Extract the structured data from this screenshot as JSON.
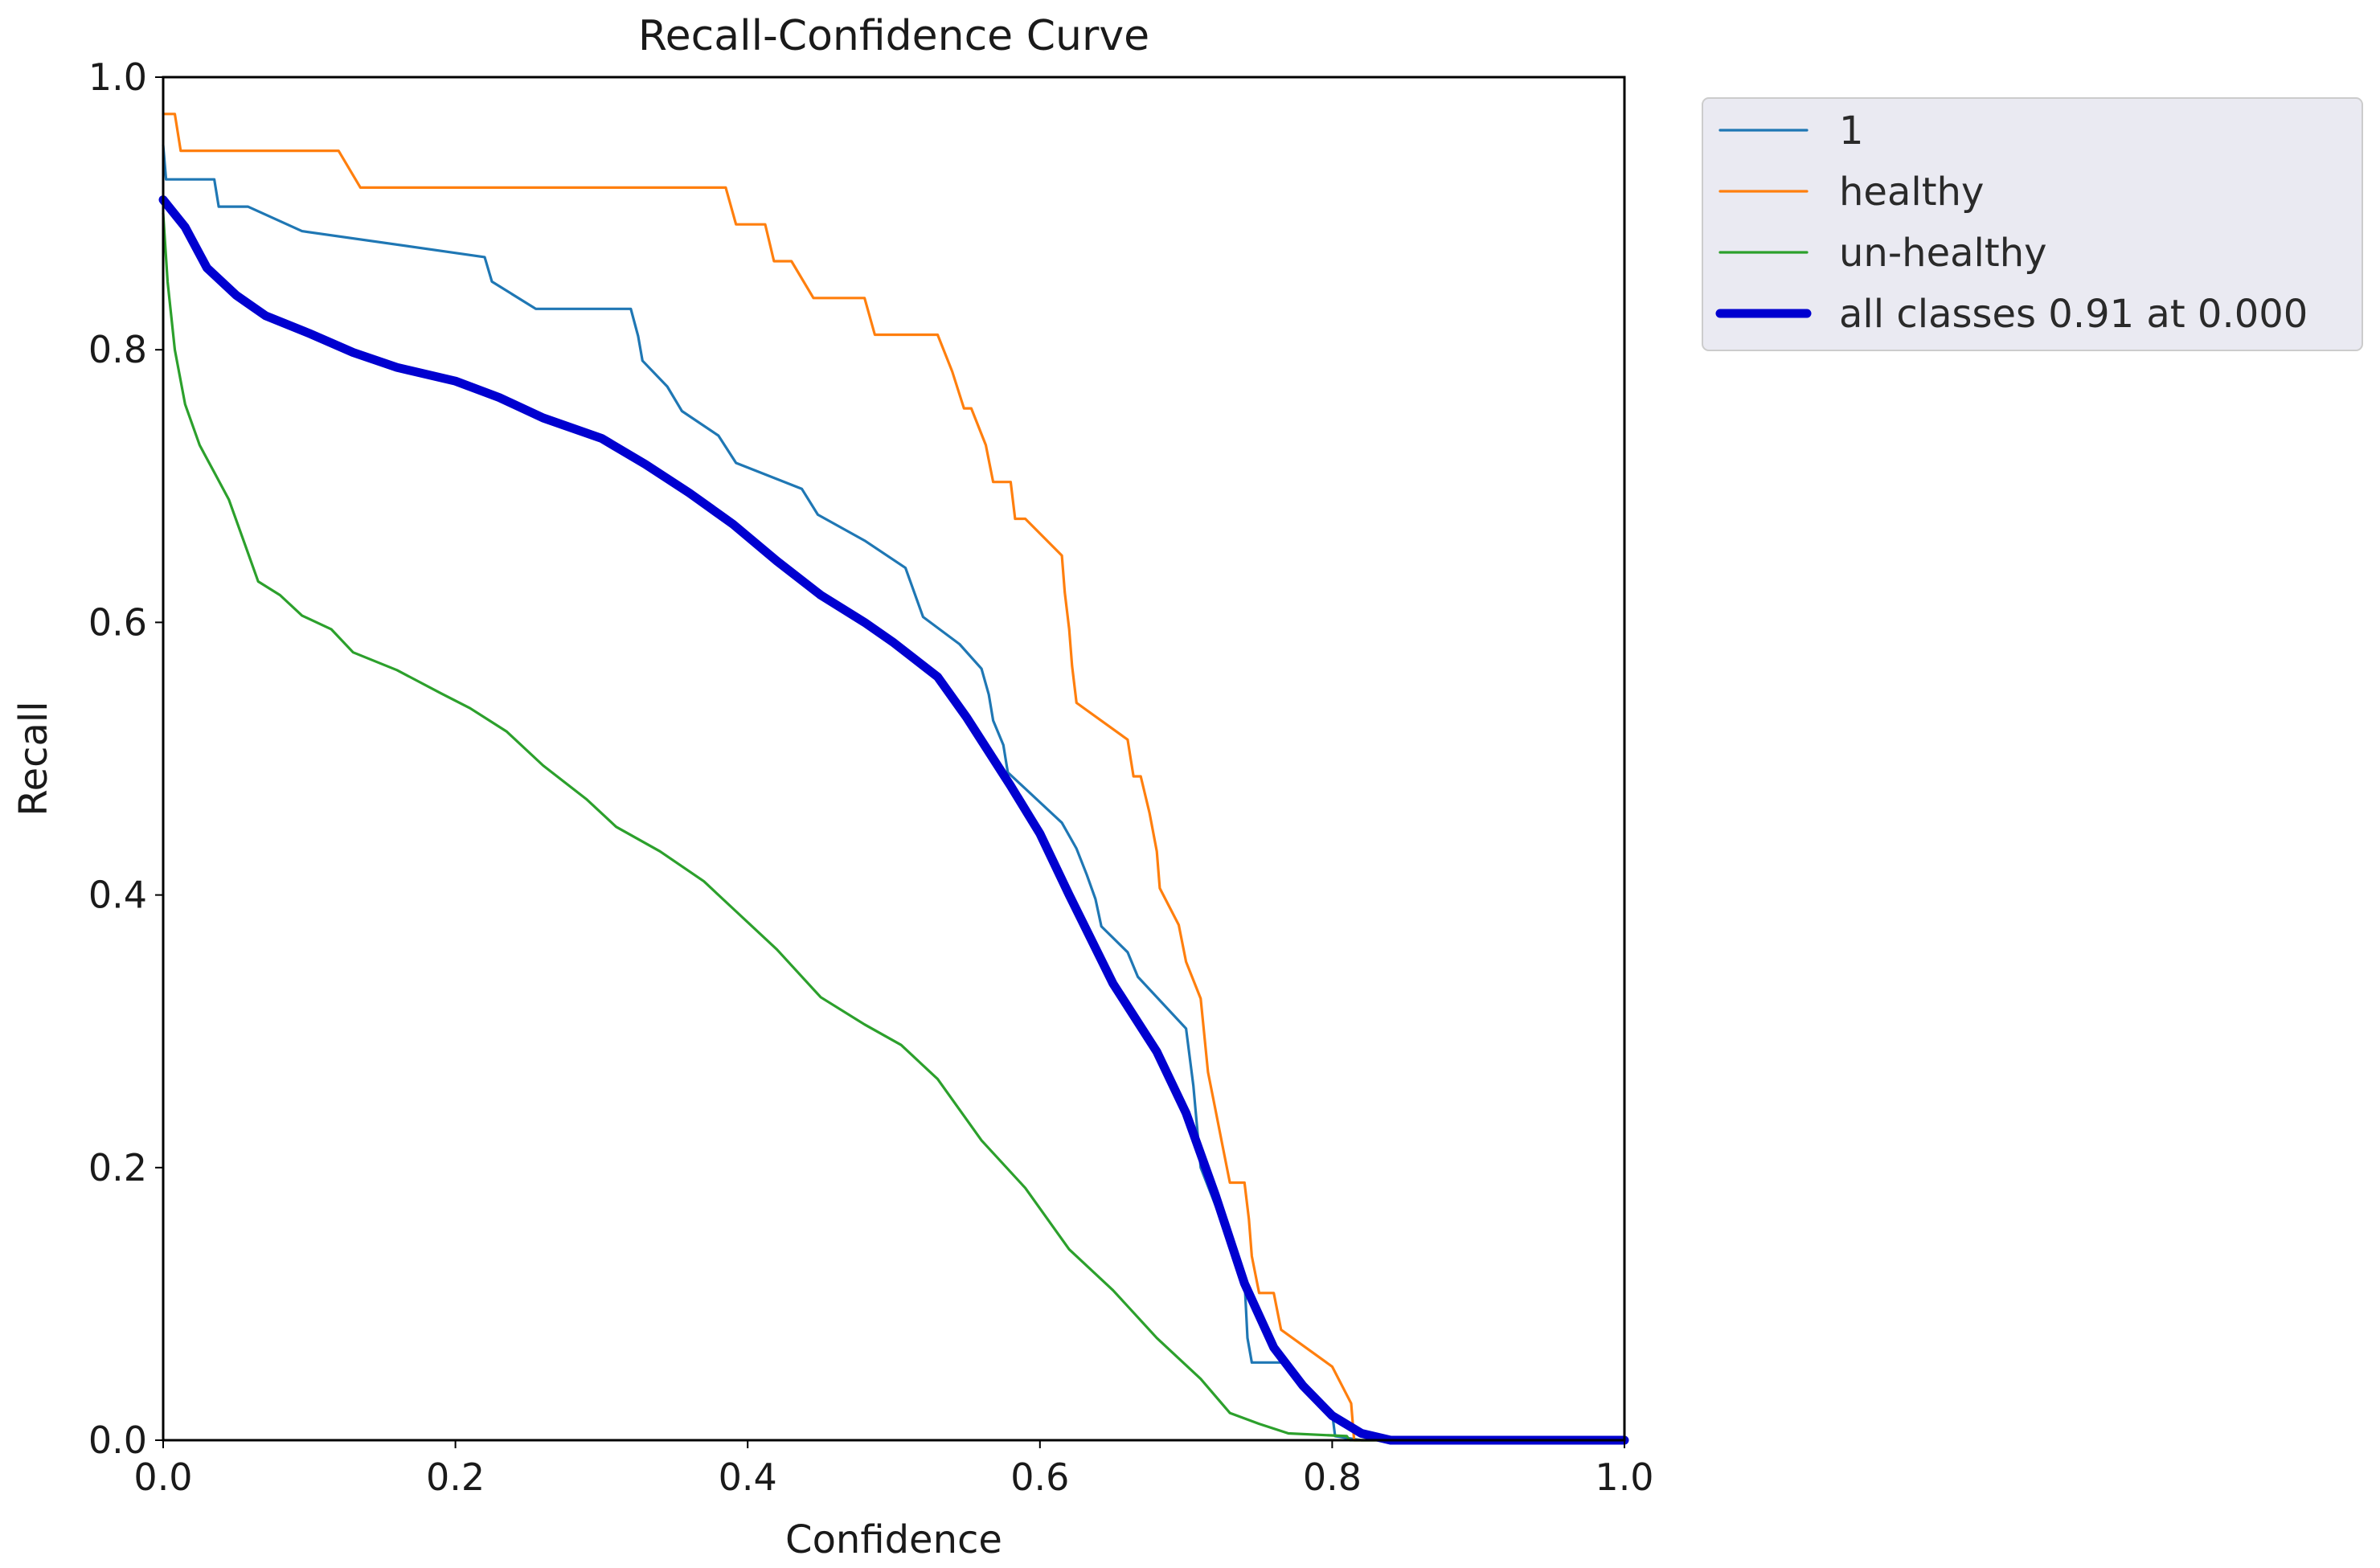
{
  "chart_data": {
    "type": "line",
    "title": "Recall-Confidence Curve",
    "xlabel": "Confidence",
    "ylabel": "Recall",
    "xlim": [
      0,
      1
    ],
    "ylim": [
      0,
      1
    ],
    "xticks": [
      0.0,
      0.2,
      0.4,
      0.6,
      0.8,
      1.0
    ],
    "yticks": [
      0.0,
      0.2,
      0.4,
      0.6,
      0.8,
      1.0
    ],
    "xtick_labels": [
      "0.0",
      "0.2",
      "0.4",
      "0.6",
      "0.8",
      "1.0"
    ],
    "ytick_labels": [
      "0.0",
      "0.2",
      "0.4",
      "0.6",
      "0.8",
      "1.0"
    ],
    "grid": false,
    "legend_position": "outside-top-right",
    "series": [
      {
        "name": "1",
        "color": "#1f77b4",
        "width": "thin",
        "points": [
          [
            0,
            0.95
          ],
          [
            0.002,
            0.925
          ],
          [
            0.035,
            0.925
          ],
          [
            0.038,
            0.905
          ],
          [
            0.058,
            0.905
          ],
          [
            0.095,
            0.887
          ],
          [
            0.22,
            0.868
          ],
          [
            0.225,
            0.85
          ],
          [
            0.255,
            0.83
          ],
          [
            0.32,
            0.83
          ],
          [
            0.325,
            0.81
          ],
          [
            0.328,
            0.792
          ],
          [
            0.345,
            0.773
          ],
          [
            0.355,
            0.755
          ],
          [
            0.38,
            0.737
          ],
          [
            0.392,
            0.717
          ],
          [
            0.437,
            0.698
          ],
          [
            0.448,
            0.679
          ],
          [
            0.48,
            0.66
          ],
          [
            0.508,
            0.64
          ],
          [
            0.52,
            0.604
          ],
          [
            0.545,
            0.584
          ],
          [
            0.56,
            0.566
          ],
          [
            0.565,
            0.547
          ],
          [
            0.568,
            0.528
          ],
          [
            0.575,
            0.51
          ],
          [
            0.578,
            0.49
          ],
          [
            0.615,
            0.453
          ],
          [
            0.625,
            0.434
          ],
          [
            0.632,
            0.415
          ],
          [
            0.638,
            0.397
          ],
          [
            0.642,
            0.377
          ],
          [
            0.66,
            0.358
          ],
          [
            0.667,
            0.34
          ],
          [
            0.7,
            0.302
          ],
          [
            0.705,
            0.26
          ],
          [
            0.71,
            0.2
          ],
          [
            0.74,
            0.118
          ],
          [
            0.742,
            0.075
          ],
          [
            0.745,
            0.057
          ],
          [
            0.768,
            0.057
          ],
          [
            0.8,
            0.02
          ],
          [
            0.802,
            0.003
          ],
          [
            0.82,
            0.0
          ],
          [
            1.0,
            0.0
          ]
        ]
      },
      {
        "name": "healthy",
        "color": "#ff7f0e",
        "width": "thin",
        "points": [
          [
            0,
            0.973
          ],
          [
            0.008,
            0.973
          ],
          [
            0.012,
            0.946
          ],
          [
            0.12,
            0.946
          ],
          [
            0.135,
            0.919
          ],
          [
            0.385,
            0.919
          ],
          [
            0.392,
            0.892
          ],
          [
            0.412,
            0.892
          ],
          [
            0.418,
            0.865
          ],
          [
            0.43,
            0.865
          ],
          [
            0.445,
            0.838
          ],
          [
            0.48,
            0.838
          ],
          [
            0.487,
            0.811
          ],
          [
            0.53,
            0.811
          ],
          [
            0.54,
            0.784
          ],
          [
            0.548,
            0.757
          ],
          [
            0.553,
            0.757
          ],
          [
            0.563,
            0.73
          ],
          [
            0.568,
            0.703
          ],
          [
            0.58,
            0.703
          ],
          [
            0.583,
            0.676
          ],
          [
            0.59,
            0.676
          ],
          [
            0.615,
            0.649
          ],
          [
            0.617,
            0.622
          ],
          [
            0.62,
            0.595
          ],
          [
            0.622,
            0.568
          ],
          [
            0.625,
            0.541
          ],
          [
            0.66,
            0.514
          ],
          [
            0.664,
            0.487
          ],
          [
            0.669,
            0.487
          ],
          [
            0.675,
            0.46
          ],
          [
            0.68,
            0.432
          ],
          [
            0.682,
            0.405
          ],
          [
            0.695,
            0.378
          ],
          [
            0.7,
            0.351
          ],
          [
            0.71,
            0.324
          ],
          [
            0.715,
            0.27
          ],
          [
            0.72,
            0.243
          ],
          [
            0.725,
            0.216
          ],
          [
            0.73,
            0.189
          ],
          [
            0.74,
            0.189
          ],
          [
            0.743,
            0.162
          ],
          [
            0.745,
            0.135
          ],
          [
            0.75,
            0.108
          ],
          [
            0.76,
            0.108
          ],
          [
            0.765,
            0.081
          ],
          [
            0.8,
            0.054
          ],
          [
            0.813,
            0.027
          ],
          [
            0.815,
            0.0
          ],
          [
            1.0,
            0.0
          ]
        ]
      },
      {
        "name": "un-healthy",
        "color": "#2ca02c",
        "width": "thin",
        "points": [
          [
            0,
            0.9
          ],
          [
            0.003,
            0.85
          ],
          [
            0.008,
            0.8
          ],
          [
            0.015,
            0.76
          ],
          [
            0.025,
            0.73
          ],
          [
            0.035,
            0.71
          ],
          [
            0.045,
            0.69
          ],
          [
            0.055,
            0.66
          ],
          [
            0.065,
            0.63
          ],
          [
            0.08,
            0.62
          ],
          [
            0.095,
            0.605
          ],
          [
            0.115,
            0.595
          ],
          [
            0.13,
            0.578
          ],
          [
            0.16,
            0.565
          ],
          [
            0.19,
            0.548
          ],
          [
            0.21,
            0.537
          ],
          [
            0.235,
            0.52
          ],
          [
            0.26,
            0.495
          ],
          [
            0.29,
            0.47
          ],
          [
            0.31,
            0.45
          ],
          [
            0.34,
            0.432
          ],
          [
            0.37,
            0.41
          ],
          [
            0.395,
            0.385
          ],
          [
            0.42,
            0.36
          ],
          [
            0.45,
            0.325
          ],
          [
            0.48,
            0.305
          ],
          [
            0.505,
            0.29
          ],
          [
            0.53,
            0.265
          ],
          [
            0.56,
            0.22
          ],
          [
            0.59,
            0.185
          ],
          [
            0.62,
            0.14
          ],
          [
            0.65,
            0.11
          ],
          [
            0.68,
            0.075
          ],
          [
            0.71,
            0.045
          ],
          [
            0.73,
            0.02
          ],
          [
            0.75,
            0.012
          ],
          [
            0.77,
            0.005
          ],
          [
            0.81,
            0.003
          ],
          [
            0.812,
            0.0
          ],
          [
            1.0,
            0.0
          ]
        ]
      },
      {
        "name": "all classes 0.91 at 0.000",
        "color": "#0000d0",
        "width": "thick",
        "points": [
          [
            0,
            0.91
          ],
          [
            0.015,
            0.89
          ],
          [
            0.03,
            0.86
          ],
          [
            0.05,
            0.84
          ],
          [
            0.07,
            0.825
          ],
          [
            0.1,
            0.812
          ],
          [
            0.13,
            0.798
          ],
          [
            0.16,
            0.787
          ],
          [
            0.2,
            0.777
          ],
          [
            0.23,
            0.765
          ],
          [
            0.26,
            0.75
          ],
          [
            0.3,
            0.735
          ],
          [
            0.33,
            0.716
          ],
          [
            0.36,
            0.695
          ],
          [
            0.39,
            0.672
          ],
          [
            0.42,
            0.645
          ],
          [
            0.45,
            0.62
          ],
          [
            0.48,
            0.6
          ],
          [
            0.5,
            0.585
          ],
          [
            0.53,
            0.56
          ],
          [
            0.55,
            0.53
          ],
          [
            0.58,
            0.48
          ],
          [
            0.6,
            0.445
          ],
          [
            0.62,
            0.4
          ],
          [
            0.65,
            0.335
          ],
          [
            0.68,
            0.285
          ],
          [
            0.7,
            0.24
          ],
          [
            0.72,
            0.18
          ],
          [
            0.74,
            0.115
          ],
          [
            0.76,
            0.068
          ],
          [
            0.78,
            0.04
          ],
          [
            0.8,
            0.018
          ],
          [
            0.82,
            0.005
          ],
          [
            0.84,
            0.0
          ],
          [
            1.0,
            0.0
          ]
        ]
      }
    ]
  }
}
